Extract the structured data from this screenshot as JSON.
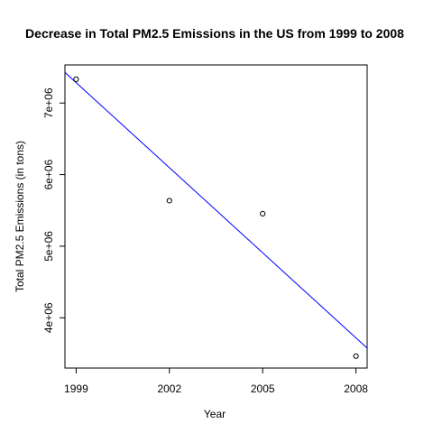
{
  "chart_data": {
    "type": "scatter",
    "title": "Decrease in Total PM2.5 Emissions in the US from 1999 to 2008",
    "xlabel": "Year",
    "ylabel": "Total PM2.5 Emissions (in tons)",
    "xlim": [
      1998.64,
      2008.36
    ],
    "ylim": [
      3298000,
      7532000
    ],
    "x_ticks": [
      1999,
      2002,
      2005,
      2008
    ],
    "x_tick_labels": [
      "1999",
      "2002",
      "2005",
      "2008"
    ],
    "y_ticks": [
      4000000,
      5000000,
      6000000,
      7000000
    ],
    "y_tick_labels": [
      "4e+06",
      "5e+06",
      "6e+06",
      "7e+06"
    ],
    "series": [
      {
        "points": [
          {
            "x": 1999,
            "y": 7332000
          },
          {
            "x": 2002,
            "y": 5636000
          },
          {
            "x": 2005,
            "y": 5454000
          },
          {
            "x": 2008,
            "y": 3464000
          }
        ],
        "marker": "open-circle",
        "color": "#000000"
      }
    ],
    "trend_line": {
      "type": "linear-regression",
      "color": "#0000ff",
      "intercept_at_1999": 7284900,
      "slope_per_year": -396140
    },
    "grid": false,
    "legend": "none"
  }
}
